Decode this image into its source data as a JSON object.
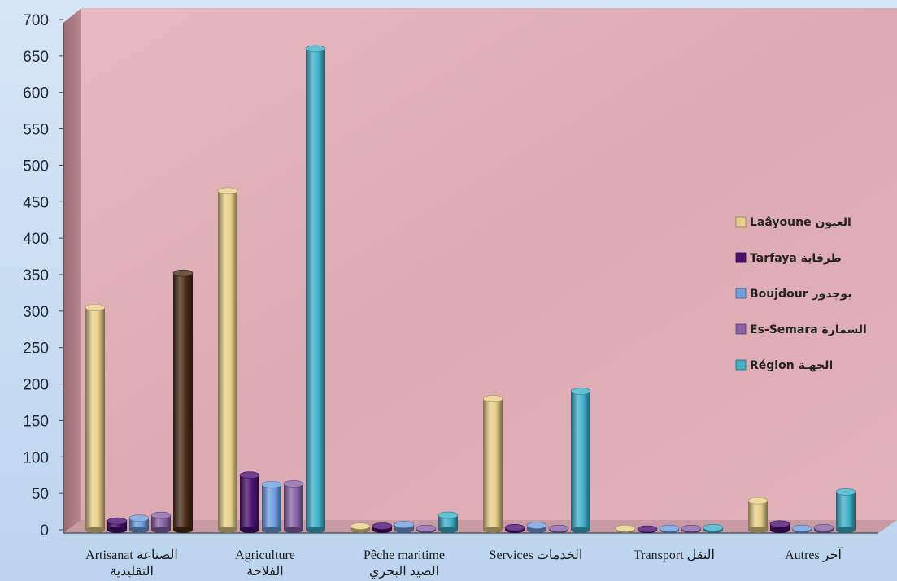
{
  "chart_data": {
    "type": "bar",
    "categories": [
      {
        "line1": "Artisanat الصناعة",
        "line2": "التقليدية"
      },
      {
        "line1": "Agriculture",
        "line2": "الفلاحة"
      },
      {
        "line1": "Pêche maritime",
        "line2": "الصيد البحري"
      },
      {
        "line1": "Services    الخدمات",
        "line2": ""
      },
      {
        "line1": "Transport النقل",
        "line2": ""
      },
      {
        "line1": "Autres آخر",
        "line2": ""
      }
    ],
    "y_ticks": [
      "0",
      "50",
      "100",
      "150",
      "200",
      "250",
      "300",
      "350",
      "400",
      "450",
      "500",
      "550",
      "600",
      "650",
      "700"
    ],
    "ylim": [
      0,
      700
    ],
    "legend_position": "right",
    "grid": false,
    "series": [
      {
        "name": "Laâyoune العيون",
        "color": "#e8d08a",
        "values": [
          305,
          465,
          5,
          180,
          2,
          40
        ]
      },
      {
        "name": "Tarfaya طرفاية",
        "color": "#4a1070",
        "values": [
          12,
          75,
          5,
          3,
          1,
          8
        ]
      },
      {
        "name": "Boujdour بوجدور",
        "color": "#6f9fe0",
        "values": [
          16,
          62,
          7,
          6,
          2,
          2
        ]
      },
      {
        "name": "Es-Semara السمارة",
        "color": "#8a64a8",
        "values": [
          20,
          63,
          2,
          2,
          2,
          3
        ]
      },
      {
        "name": "Région الجهـة",
        "color": "#3fb2cc",
        "values": [
          352,
          660,
          20,
          190,
          3,
          52
        ]
      }
    ],
    "special_bar_colors": [
      {
        "category_index": 0,
        "series_index": 4,
        "color": "#4a2e1a"
      }
    ]
  }
}
